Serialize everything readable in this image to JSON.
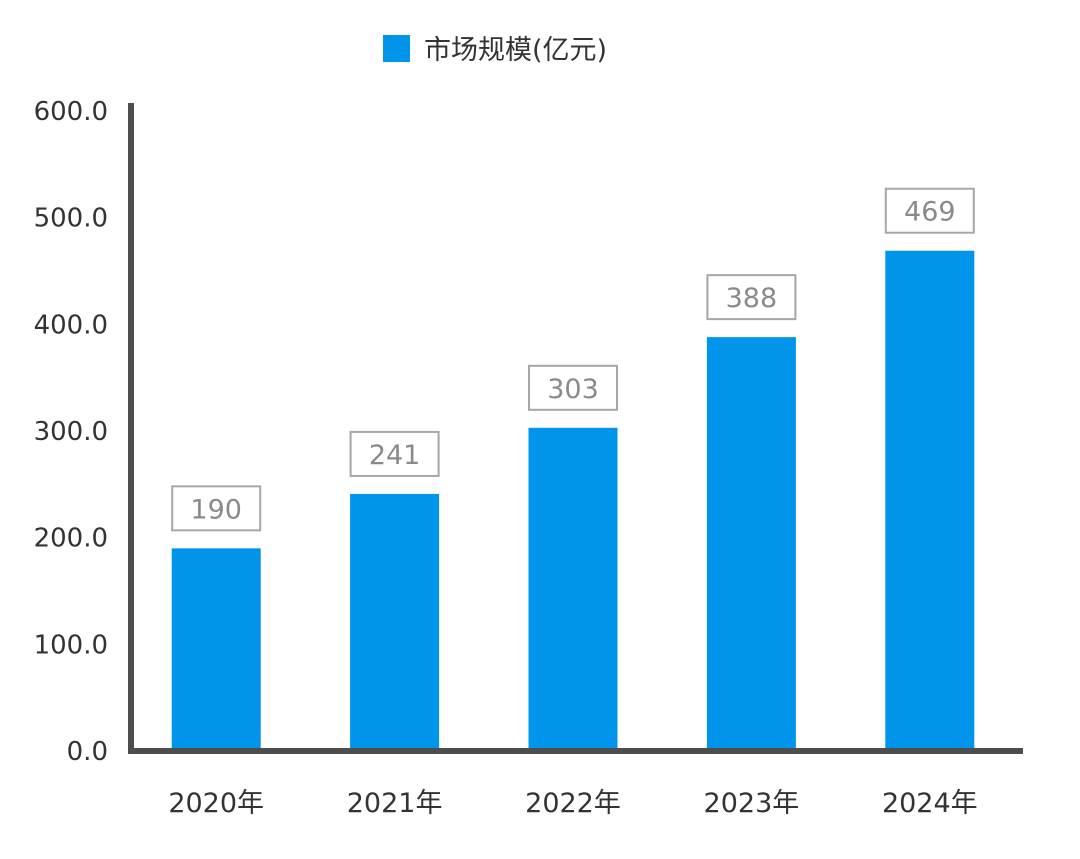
{
  "chart_data": {
    "type": "bar",
    "title": "",
    "xlabel": "",
    "ylabel": "",
    "categories": [
      "2020年",
      "2021年",
      "2022年",
      "2023年",
      "2024年"
    ],
    "series": [
      {
        "name": "市场规模(亿元)",
        "values": [
          190,
          241,
          303,
          388,
          469
        ]
      }
    ],
    "data_labels": [
      "190",
      "241",
      "303",
      "388",
      "469"
    ],
    "y_ticks": [
      "0.0",
      "100.0",
      "200.0",
      "300.0",
      "400.0",
      "500.0",
      "600.0"
    ],
    "ylim": [
      0,
      600
    ],
    "grid": false,
    "legend_position": "top-center",
    "colors": {
      "bar": "#0094ea",
      "axis": "#4d4d4d",
      "label_border": "#a6a6a6",
      "label_text": "#8a8a8a"
    }
  }
}
